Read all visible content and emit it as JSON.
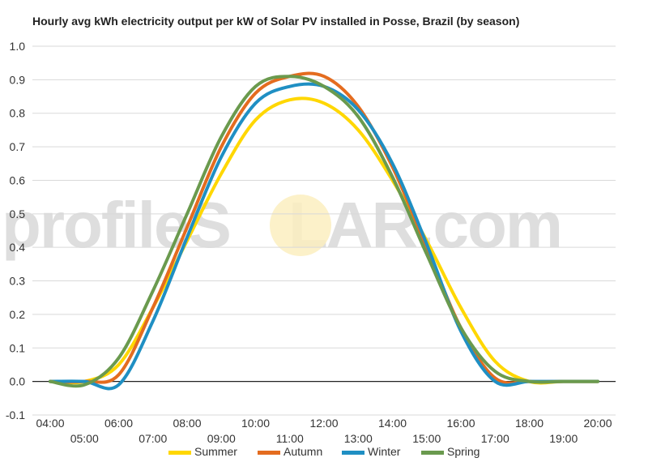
{
  "watermark": {
    "text_before": "profileS",
    "text_after": "LAR.com"
  },
  "chart_data": {
    "type": "line",
    "title": "Hourly avg kWh electricity output per kW of Solar PV installed in Posse, Brazil (by season)",
    "xlabel": "",
    "ylabel": "",
    "ylim": [
      -0.1,
      1.0
    ],
    "y_ticks": [
      "-0.1",
      "0.0",
      "0.1",
      "0.2",
      "0.3",
      "0.4",
      "0.5",
      "0.6",
      "0.7",
      "0.8",
      "0.9",
      "1.0"
    ],
    "categories": [
      "04:00",
      "05:00",
      "06:00",
      "07:00",
      "08:00",
      "09:00",
      "10:00",
      "11:00",
      "12:00",
      "13:00",
      "14:00",
      "15:00",
      "16:00",
      "17:00",
      "18:00",
      "19:00",
      "20:00"
    ],
    "grid": true,
    "legend_position": "bottom",
    "series": [
      {
        "name": "Summer",
        "color": "#ffd700",
        "values": [
          0.0,
          0.0,
          0.05,
          0.22,
          0.42,
          0.62,
          0.78,
          0.84,
          0.83,
          0.75,
          0.6,
          0.42,
          0.22,
          0.06,
          0.0,
          0.0,
          0.0
        ]
      },
      {
        "name": "Autumn",
        "color": "#e46c1f",
        "values": [
          0.0,
          0.0,
          0.02,
          0.22,
          0.46,
          0.7,
          0.86,
          0.91,
          0.91,
          0.82,
          0.64,
          0.4,
          0.16,
          0.01,
          0.0,
          0.0,
          0.0
        ]
      },
      {
        "name": "Winter",
        "color": "#1f8fc3",
        "values": [
          0.0,
          0.0,
          -0.01,
          0.18,
          0.43,
          0.67,
          0.83,
          0.88,
          0.88,
          0.81,
          0.65,
          0.41,
          0.15,
          0.0,
          0.0,
          0.0,
          0.0
        ]
      },
      {
        "name": "Spring",
        "color": "#6a9a4e",
        "values": [
          0.0,
          -0.01,
          0.07,
          0.27,
          0.5,
          0.73,
          0.88,
          0.91,
          0.88,
          0.79,
          0.61,
          0.38,
          0.16,
          0.03,
          0.0,
          0.0,
          0.0
        ]
      }
    ]
  }
}
